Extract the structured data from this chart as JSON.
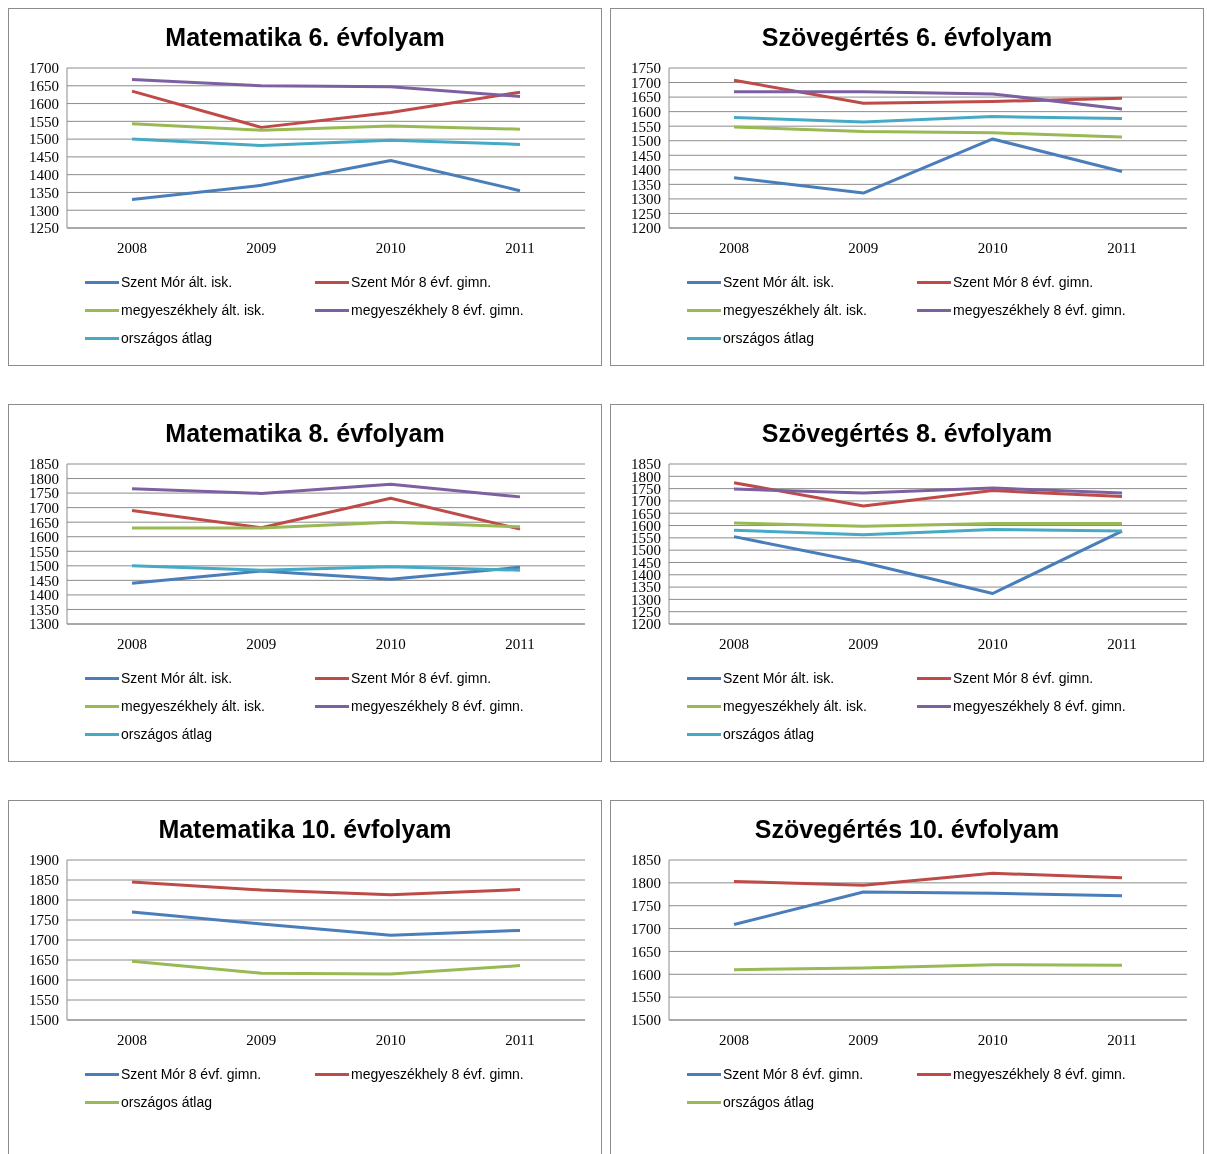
{
  "chart_data": [
    {
      "type": "line",
      "title": "Matematika 6. évfolyam",
      "categories": [
        "2008",
        "2009",
        "2010",
        "2011"
      ],
      "ylim": [
        1250,
        1700
      ],
      "yticks": [
        1250,
        1300,
        1350,
        1400,
        1450,
        1500,
        1550,
        1600,
        1650,
        1700
      ],
      "grid": "y",
      "legend": "bottom",
      "marker": "none",
      "line_style": "solid",
      "series": [
        {
          "name": "Szent Mór ált. isk.",
          "color": "#4a7ebb",
          "values": [
            1330,
            1370,
            1440,
            1355
          ]
        },
        {
          "name": "Szent Mór 8 évf. gimn.",
          "color": "#be4b48",
          "values": [
            1635,
            1533,
            1575,
            1632
          ]
        },
        {
          "name": "megyeszékhely ált. isk.",
          "color": "#98b954",
          "values": [
            1543,
            1525,
            1537,
            1528
          ]
        },
        {
          "name": "megyeszékhely 8 évf. gimn.",
          "color": "#7d60a0",
          "values": [
            1668,
            1650,
            1647,
            1620
          ]
        },
        {
          "name": "országos átlag",
          "color": "#46aac5",
          "values": [
            1500,
            1482,
            1497,
            1485
          ]
        }
      ]
    },
    {
      "type": "line",
      "title": "Szövegértés 6. évfolyam",
      "categories": [
        "2008",
        "2009",
        "2010",
        "2011"
      ],
      "ylim": [
        1200,
        1750
      ],
      "yticks": [
        1200,
        1250,
        1300,
        1350,
        1400,
        1450,
        1500,
        1550,
        1600,
        1650,
        1700,
        1750
      ],
      "grid": "y",
      "legend": "bottom",
      "marker": "none",
      "line_style": "solid",
      "series": [
        {
          "name": "Szent Mór ált. isk.",
          "color": "#4a7ebb",
          "values": [
            1373,
            1320,
            1506,
            1394
          ]
        },
        {
          "name": "Szent Mór 8 évf. gimn.",
          "color": "#be4b48",
          "values": [
            1708,
            1629,
            1635,
            1646
          ]
        },
        {
          "name": "megyeszékhely ált. isk.",
          "color": "#98b954",
          "values": [
            1547,
            1532,
            1527,
            1513
          ]
        },
        {
          "name": "megyeszékhely 8 évf. gimn.",
          "color": "#7d60a0",
          "values": [
            1668,
            1668,
            1661,
            1609
          ]
        },
        {
          "name": "országos átlag",
          "color": "#46aac5",
          "values": [
            1580,
            1564,
            1583,
            1576
          ]
        }
      ]
    },
    {
      "type": "line",
      "title": "Matematika 8. évfolyam",
      "categories": [
        "2008",
        "2009",
        "2010",
        "2011"
      ],
      "ylim": [
        1300,
        1850
      ],
      "yticks": [
        1300,
        1350,
        1400,
        1450,
        1500,
        1550,
        1600,
        1650,
        1700,
        1750,
        1800,
        1850
      ],
      "grid": "y",
      "legend": "bottom",
      "marker": "none",
      "line_style": "solid",
      "series": [
        {
          "name": "Szent Mór ált. isk.",
          "color": "#4a7ebb",
          "values": [
            1440,
            1482,
            1454,
            1495
          ]
        },
        {
          "name": "Szent Mór 8 évf. gimn.",
          "color": "#be4b48",
          "values": [
            1690,
            1631,
            1732,
            1626
          ]
        },
        {
          "name": "megyeszékhely ált. isk.",
          "color": "#98b954",
          "values": [
            1630,
            1630,
            1650,
            1634
          ]
        },
        {
          "name": "megyeszékhely 8 évf. gimn.",
          "color": "#7d60a0",
          "values": [
            1765,
            1749,
            1780,
            1737
          ]
        },
        {
          "name": "országos átlag",
          "color": "#46aac5",
          "values": [
            1500,
            1485,
            1497,
            1485
          ]
        }
      ]
    },
    {
      "type": "line",
      "title": "Szövegértés 8. évfolyam",
      "categories": [
        "2008",
        "2009",
        "2010",
        "2011"
      ],
      "ylim": [
        1200,
        1850
      ],
      "yticks": [
        1200,
        1250,
        1300,
        1350,
        1400,
        1450,
        1500,
        1550,
        1600,
        1650,
        1700,
        1750,
        1800,
        1850
      ],
      "grid": "y",
      "legend": "bottom",
      "marker": "none",
      "line_style": "solid",
      "series": [
        {
          "name": "Szent Mór ált. isk.",
          "color": "#4a7ebb",
          "values": [
            1555,
            1450,
            1324,
            1577
          ]
        },
        {
          "name": "Szent Mór 8 évf. gimn.",
          "color": "#be4b48",
          "values": [
            1774,
            1679,
            1742,
            1718
          ]
        },
        {
          "name": "megyeszékhely ált. isk.",
          "color": "#98b954",
          "values": [
            1610,
            1597,
            1608,
            1608
          ]
        },
        {
          "name": "megyeszékhely 8 évf. gimn.",
          "color": "#7d60a0",
          "values": [
            1748,
            1732,
            1752,
            1732
          ]
        },
        {
          "name": "országos átlag",
          "color": "#46aac5",
          "values": [
            1581,
            1563,
            1584,
            1578
          ]
        }
      ]
    },
    {
      "type": "line",
      "title": "Matematika 10. évfolyam",
      "categories": [
        "2008",
        "2009",
        "2010",
        "2011"
      ],
      "ylim": [
        1500,
        1900
      ],
      "yticks": [
        1500,
        1550,
        1600,
        1650,
        1700,
        1750,
        1800,
        1850,
        1900
      ],
      "grid": "y",
      "legend": "bottom",
      "marker": "none",
      "line_style": "solid",
      "series": [
        {
          "name": "Szent Mór 8 évf. gimn.",
          "color": "#4a7ebb",
          "values": [
            1770,
            1740,
            1712,
            1724
          ]
        },
        {
          "name": "megyeszékhely 8 évf. gimn.",
          "color": "#be4b48",
          "values": [
            1845,
            1825,
            1813,
            1826
          ]
        },
        {
          "name": "országos átlag",
          "color": "#98b954",
          "values": [
            1647,
            1617,
            1615,
            1636
          ]
        }
      ]
    },
    {
      "type": "line",
      "title": "Szövegértés 10. évfolyam",
      "categories": [
        "2008",
        "2009",
        "2010",
        "2011"
      ],
      "ylim": [
        1500,
        1850
      ],
      "yticks": [
        1500,
        1550,
        1600,
        1650,
        1700,
        1750,
        1800,
        1850
      ],
      "grid": "y",
      "legend": "bottom",
      "marker": "none",
      "line_style": "solid",
      "series": [
        {
          "name": "Szent Mór 8 évf. gimn.",
          "color": "#4a7ebb",
          "values": [
            1709,
            1780,
            1777,
            1772
          ]
        },
        {
          "name": "megyeszékhely 8 évf. gimn.",
          "color": "#be4b48",
          "values": [
            1803,
            1795,
            1821,
            1811
          ]
        },
        {
          "name": "országos átlag",
          "color": "#98b954",
          "values": [
            1610,
            1614,
            1621,
            1620
          ]
        }
      ]
    }
  ]
}
